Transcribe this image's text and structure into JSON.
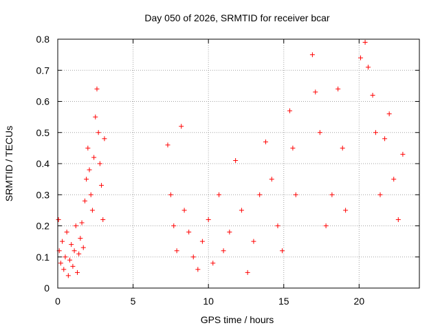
{
  "chart_data": {
    "type": "scatter",
    "title": "Day 050 of 2026, SRMTID for receiver bcar",
    "xlabel": "GPS time / hours",
    "ylabel": "SRMTID / TECUs",
    "xlim": [
      0,
      24
    ],
    "ylim": [
      0,
      0.8
    ],
    "xticks": [
      "0",
      "5",
      "10",
      "15",
      "20"
    ],
    "yticks": [
      "0",
      "0.1",
      "0.2",
      "0.3",
      "0.4",
      "0.5",
      "0.6",
      "0.7",
      "0.8"
    ],
    "grid": true,
    "marker": "plus",
    "color": "#ff0000",
    "series": [
      {
        "name": "SRMTID",
        "clusters": [
          {
            "x_start": 0.0,
            "x_end": 3.2,
            "note": "dense, mostly 0.03-0.45, peak ~0.64 near 2.6h"
          },
          {
            "x_start": 7.2,
            "x_end": 15.0,
            "note": "dense, mostly 0.0-0.35, isolated up to ~0.52 near 8.2h"
          },
          {
            "x_start": 15.3,
            "x_end": 16.0,
            "note": "up to ~0.57"
          },
          {
            "x_start": 16.7,
            "x_end": 19.3,
            "note": "up to ~0.75 at 17.0h, 0.64 near 18.6h"
          },
          {
            "x_start": 20.0,
            "x_end": 21.2,
            "note": "up to ~0.79 near 20.4h"
          },
          {
            "x_start": 21.2,
            "x_end": 23.0,
            "note": "mostly 0.05-0.45, up to ~0.56"
          }
        ],
        "points": [
          [
            0.05,
            0.22
          ],
          [
            0.1,
            0.12
          ],
          [
            0.2,
            0.08
          ],
          [
            0.3,
            0.15
          ],
          [
            0.4,
            0.06
          ],
          [
            0.5,
            0.1
          ],
          [
            0.6,
            0.18
          ],
          [
            0.7,
            0.04
          ],
          [
            0.8,
            0.09
          ],
          [
            0.9,
            0.14
          ],
          [
            1.0,
            0.07
          ],
          [
            1.1,
            0.12
          ],
          [
            1.2,
            0.2
          ],
          [
            1.3,
            0.05
          ],
          [
            1.4,
            0.11
          ],
          [
            1.5,
            0.16
          ],
          [
            1.6,
            0.21
          ],
          [
            1.7,
            0.13
          ],
          [
            1.8,
            0.28
          ],
          [
            1.9,
            0.35
          ],
          [
            2.0,
            0.45
          ],
          [
            2.1,
            0.38
          ],
          [
            2.2,
            0.3
          ],
          [
            2.3,
            0.25
          ],
          [
            2.4,
            0.42
          ],
          [
            2.5,
            0.55
          ],
          [
            2.6,
            0.64
          ],
          [
            2.7,
            0.5
          ],
          [
            2.8,
            0.4
          ],
          [
            2.9,
            0.33
          ],
          [
            3.0,
            0.22
          ],
          [
            3.1,
            0.48
          ],
          [
            7.3,
            0.46
          ],
          [
            7.5,
            0.3
          ],
          [
            7.7,
            0.2
          ],
          [
            7.9,
            0.12
          ],
          [
            8.2,
            0.52
          ],
          [
            8.4,
            0.25
          ],
          [
            8.7,
            0.18
          ],
          [
            9.0,
            0.1
          ],
          [
            9.3,
            0.06
          ],
          [
            9.6,
            0.15
          ],
          [
            10.0,
            0.22
          ],
          [
            10.3,
            0.08
          ],
          [
            10.7,
            0.3
          ],
          [
            11.0,
            0.12
          ],
          [
            11.4,
            0.18
          ],
          [
            11.8,
            0.41
          ],
          [
            12.2,
            0.25
          ],
          [
            12.6,
            0.05
          ],
          [
            13.0,
            0.15
          ],
          [
            13.4,
            0.3
          ],
          [
            13.8,
            0.47
          ],
          [
            14.2,
            0.35
          ],
          [
            14.6,
            0.2
          ],
          [
            14.9,
            0.12
          ],
          [
            15.4,
            0.57
          ],
          [
            15.6,
            0.45
          ],
          [
            15.8,
            0.3
          ],
          [
            16.9,
            0.75
          ],
          [
            17.1,
            0.63
          ],
          [
            17.4,
            0.5
          ],
          [
            17.8,
            0.2
          ],
          [
            18.2,
            0.3
          ],
          [
            18.6,
            0.64
          ],
          [
            18.9,
            0.45
          ],
          [
            19.1,
            0.25
          ],
          [
            20.1,
            0.74
          ],
          [
            20.4,
            0.79
          ],
          [
            20.6,
            0.71
          ],
          [
            20.9,
            0.62
          ],
          [
            21.1,
            0.5
          ],
          [
            21.4,
            0.3
          ],
          [
            21.7,
            0.48
          ],
          [
            22.0,
            0.56
          ],
          [
            22.3,
            0.35
          ],
          [
            22.6,
            0.22
          ],
          [
            22.9,
            0.43
          ]
        ]
      }
    ]
  }
}
